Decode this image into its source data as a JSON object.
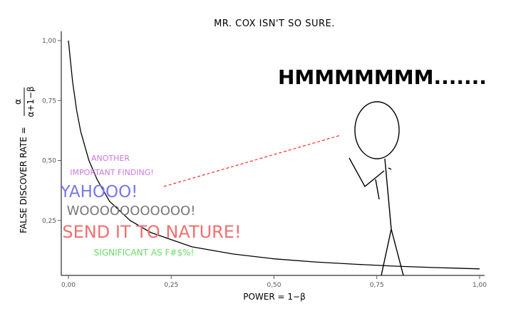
{
  "chart_data": {
    "type": "line",
    "title": "MR. COX ISN'T SO SURE.",
    "xlabel": "POWER = 1−β",
    "ylabel": "FALSE DISCOVER RATE =",
    "ylabel_fraction": {
      "numerator": "α",
      "denominator": "α+1−β"
    },
    "xlim": [
      0,
      1
    ],
    "ylim": [
      0,
      1
    ],
    "x_ticks": [
      "0,00",
      "0,25",
      "0,50",
      "0,75",
      "1,00"
    ],
    "y_ticks": [
      "0,25",
      "0,50",
      "0,75",
      "1,00"
    ],
    "grid": false,
    "series": [
      {
        "x": [
          0.0,
          0.01,
          0.02,
          0.03,
          0.05,
          0.07,
          0.1,
          0.15,
          0.2,
          0.25,
          0.3,
          0.4,
          0.5,
          0.6,
          0.7,
          0.8,
          0.9,
          1.0
        ],
        "y": [
          1.0,
          0.83,
          0.71,
          0.62,
          0.5,
          0.42,
          0.33,
          0.25,
          0.2,
          0.17,
          0.14,
          0.11,
          0.09,
          0.077,
          0.067,
          0.059,
          0.053,
          0.048
        ]
      }
    ],
    "annotations": [
      {
        "text": "ANOTHER",
        "color": "#cc77dd"
      },
      {
        "text": "IMPORTANT FINDING!",
        "color": "#cc77dd"
      },
      {
        "text": "YAHOOO!",
        "color": "#7777ee"
      },
      {
        "text": "WOOOOOOOOOOO!",
        "color": "#777777"
      },
      {
        "text": "SEND IT TO NATURE!",
        "color": "#f07070"
      },
      {
        "text": "SIGNIFICANT AS F#$%!",
        "color": "#66dd66"
      }
    ],
    "speech": "HMMMMMMM......."
  }
}
